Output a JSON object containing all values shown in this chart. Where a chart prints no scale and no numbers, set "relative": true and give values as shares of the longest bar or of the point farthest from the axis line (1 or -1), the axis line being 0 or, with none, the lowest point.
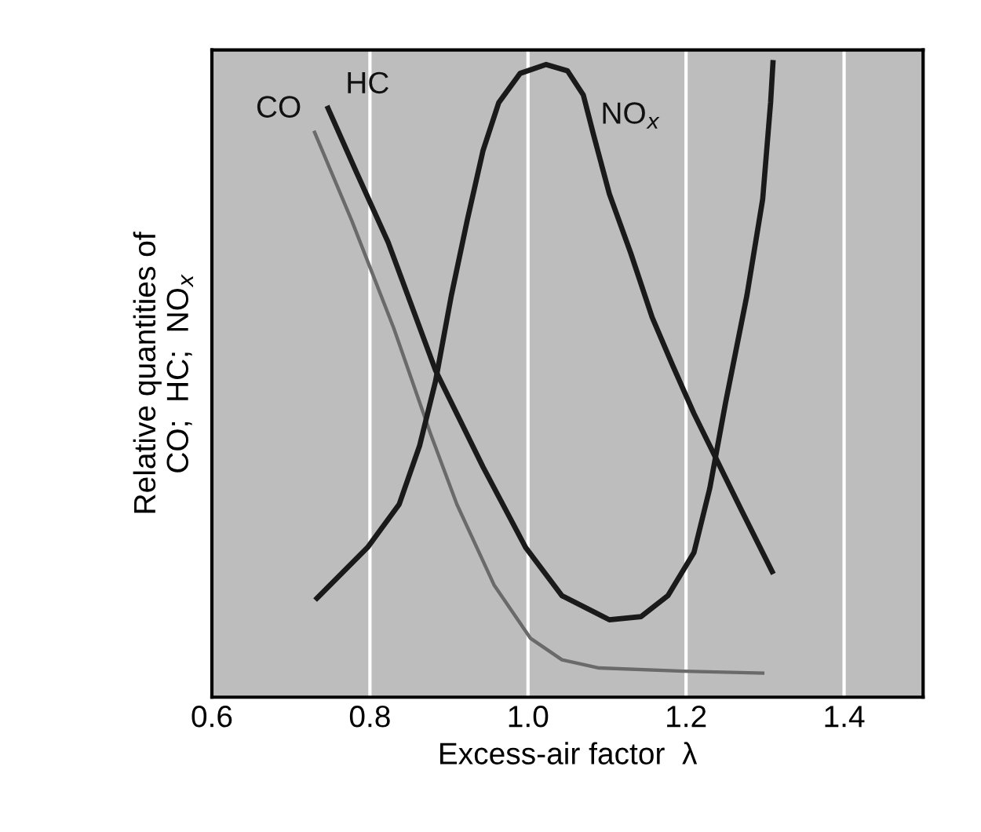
{
  "chart_data": {
    "type": "line",
    "relative": true,
    "xlabel": "Excess-air factor  λ",
    "ylabel": "Relative quantities of\nCO;  HC;  NO$_{x}$",
    "xlim": [
      0.6,
      1.5
    ],
    "xticks": [
      {
        "value": 0.6,
        "label": "0.6"
      },
      {
        "value": 0.8,
        "label": "0.8"
      },
      {
        "value": 1.0,
        "label": "1.0"
      },
      {
        "value": 1.2,
        "label": "1.2"
      },
      {
        "value": 1.4,
        "label": "1.4"
      }
    ],
    "grid": "x",
    "tick_labels": "x",
    "marker": "none",
    "line_style": "solid",
    "series": [
      {
        "name": "CO",
        "color": "#6a6a6a",
        "x": [
          0.73,
          0.777,
          0.83,
          0.877,
          0.91,
          0.957,
          1.003,
          1.043,
          1.09,
          1.197,
          1.297
        ],
        "values": [
          0.89,
          0.751,
          0.582,
          0.414,
          0.304,
          0.177,
          0.093,
          0.059,
          0.046,
          0.041,
          0.038
        ]
      },
      {
        "name": "HC",
        "color": "#1a1a1a",
        "x": [
          0.747,
          0.783,
          0.823,
          0.883,
          0.943,
          0.997,
          1.043,
          1.103,
          1.143,
          1.177,
          1.21,
          1.23,
          1.25,
          1.277,
          1.297,
          1.307,
          1.31
        ],
        "values": [
          0.928,
          0.827,
          0.717,
          0.515,
          0.363,
          0.236,
          0.16,
          0.122,
          0.127,
          0.16,
          0.228,
          0.329,
          0.464,
          0.633,
          0.785,
          0.937,
          1.0
        ]
      },
      {
        "name": "NO$_{x}$",
        "color": "#1a1a1a",
        "x": [
          0.733,
          0.797,
          0.837,
          0.863,
          0.883,
          0.903,
          0.923,
          0.943,
          0.963,
          0.99,
          1.023,
          1.05,
          1.07,
          1.083,
          1.103,
          1.13,
          1.157,
          1.183,
          1.21,
          1.24,
          1.27,
          1.309
        ],
        "values": [
          0.156,
          0.236,
          0.304,
          0.397,
          0.498,
          0.633,
          0.751,
          0.861,
          0.937,
          0.983,
          0.997,
          0.987,
          0.949,
          0.886,
          0.793,
          0.7,
          0.599,
          0.523,
          0.447,
          0.371,
          0.295,
          0.198
        ]
      }
    ]
  }
}
